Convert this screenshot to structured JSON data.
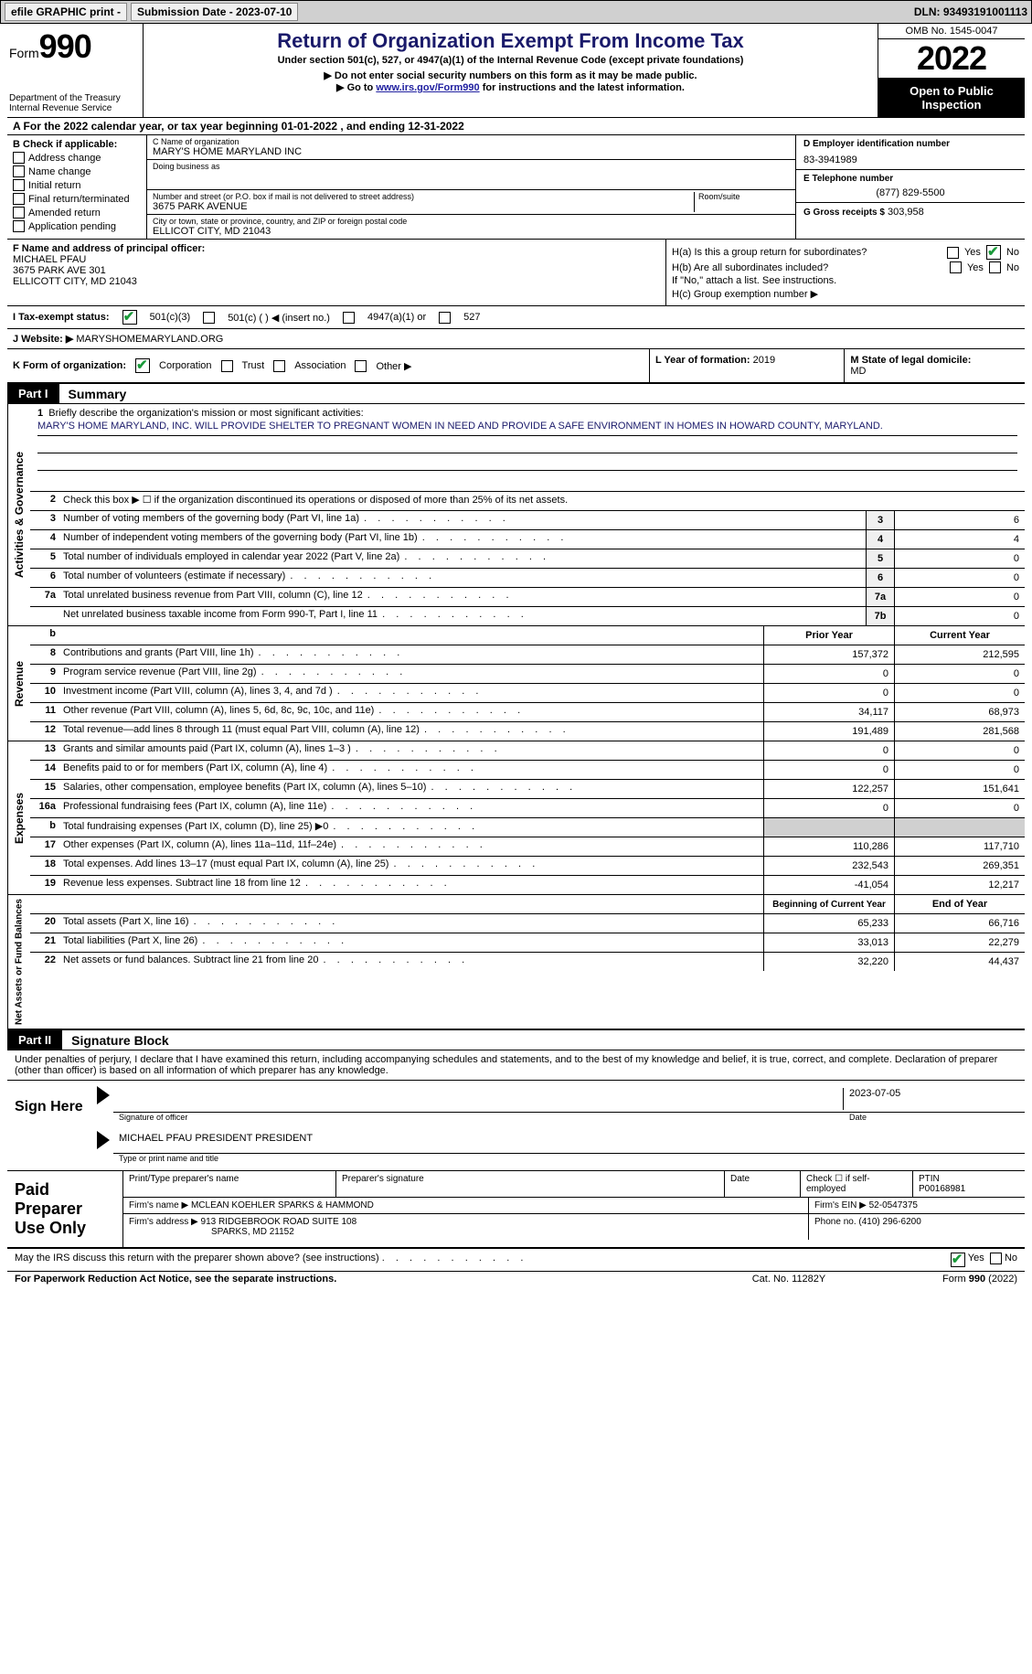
{
  "topbar": {
    "efile": "efile GRAPHIC print -",
    "submission": "Submission Date - 2023-07-10",
    "dln": "DLN: 93493191001113"
  },
  "header": {
    "form_word": "Form",
    "form_num": "990",
    "dept": "Department of the Treasury\nInternal Revenue Service",
    "title": "Return of Organization Exempt From Income Tax",
    "subtitle": "Under section 501(c), 527, or 4947(a)(1) of the Internal Revenue Code (except private foundations)",
    "note1": "▶ Do not enter social security numbers on this form as it may be made public.",
    "note2_pre": "▶ Go to ",
    "note2_link": "www.irs.gov/Form990",
    "note2_post": " for instructions and the latest information.",
    "omb": "OMB No. 1545-0047",
    "year": "2022",
    "open": "Open to Public Inspection"
  },
  "line_a": "A  For the 2022 calendar year, or tax year beginning 01-01-2022    , and ending 12-31-2022",
  "col_b": {
    "title": "B Check if applicable:",
    "opts": [
      "Address change",
      "Name change",
      "Initial return",
      "Final return/terminated",
      "Amended return",
      "Application pending"
    ]
  },
  "col_c": {
    "name_label": "C Name of organization",
    "name": "MARY'S HOME MARYLAND INC",
    "dba_label": "Doing business as",
    "dba": "",
    "addr_label": "Number and street (or P.O. box if mail is not delivered to street address)",
    "room_label": "Room/suite",
    "addr": "3675 PARK AVENUE",
    "city_label": "City or town, state or province, country, and ZIP or foreign postal code",
    "city": "ELLICOT CITY, MD  21043"
  },
  "col_d": {
    "ein_label": "D Employer identification number",
    "ein": "83-3941989",
    "phone_label": "E Telephone number",
    "phone": "(877) 829-5500",
    "gross_label": "G Gross receipts $",
    "gross": "303,958"
  },
  "col_f": {
    "label": "F Name and address of principal officer:",
    "name": "MICHAEL PFAU",
    "addr1": "3675 PARK AVE 301",
    "addr2": "ELLICOTT CITY, MD  21043"
  },
  "col_h": {
    "ha": "H(a)  Is this a group return for subordinates?",
    "hb": "H(b)  Are all subordinates included?",
    "hb_note": "If \"No,\" attach a list. See instructions.",
    "hc": "H(c)  Group exemption number ▶",
    "yes": "Yes",
    "no": "No"
  },
  "row_i": {
    "label": "I    Tax-exempt status:",
    "opt1": "501(c)(3)",
    "opt2": "501(c) (   ) ◀ (insert no.)",
    "opt3": "4947(a)(1) or",
    "opt4": "527"
  },
  "row_j": {
    "label": "J   Website: ▶",
    "val": "MARYSHOMEMARYLAND.ORG"
  },
  "row_k": {
    "label": "K Form of organization:",
    "opts": [
      "Corporation",
      "Trust",
      "Association",
      "Other ▶"
    ],
    "l_label": "L Year of formation:",
    "l_val": "2019",
    "m_label": "M State of legal domicile:",
    "m_val": "MD"
  },
  "parts": {
    "p1_tab": "Part I",
    "p1_title": "Summary",
    "p2_tab": "Part II",
    "p2_title": "Signature Block"
  },
  "vert": {
    "activities": "Activities & Governance",
    "revenue": "Revenue",
    "expenses": "Expenses",
    "netassets": "Net Assets or Fund Balances"
  },
  "summary": {
    "line1_label": "Briefly describe the organization's mission or most significant activities:",
    "line1_text": "MARY'S HOME MARYLAND, INC. WILL PROVIDE SHELTER TO PREGNANT WOMEN IN NEED AND PROVIDE A SAFE ENVIRONMENT IN HOMES IN HOWARD COUNTY, MARYLAND.",
    "line2": "Check this box ▶ ☐  if the organization discontinued its operations or disposed of more than 25% of its net assets.",
    "rows_gov": [
      {
        "n": "3",
        "t": "Number of voting members of the governing body (Part VI, line 1a)",
        "box": "3",
        "v": "6"
      },
      {
        "n": "4",
        "t": "Number of independent voting members of the governing body (Part VI, line 1b)",
        "box": "4",
        "v": "4"
      },
      {
        "n": "5",
        "t": "Total number of individuals employed in calendar year 2022 (Part V, line 2a)",
        "box": "5",
        "v": "0"
      },
      {
        "n": "6",
        "t": "Total number of volunteers (estimate if necessary)",
        "box": "6",
        "v": "0"
      },
      {
        "n": "7a",
        "t": "Total unrelated business revenue from Part VIII, column (C), line 12",
        "box": "7a",
        "v": "0"
      },
      {
        "n": "",
        "t": "Net unrelated business taxable income from Form 990-T, Part I, line 11",
        "box": "7b",
        "v": "0"
      }
    ],
    "hdr_prior": "Prior Year",
    "hdr_current": "Current Year",
    "rows_rev": [
      {
        "n": "8",
        "t": "Contributions and grants (Part VIII, line 1h)",
        "p": "157,372",
        "c": "212,595"
      },
      {
        "n": "9",
        "t": "Program service revenue (Part VIII, line 2g)",
        "p": "0",
        "c": "0"
      },
      {
        "n": "10",
        "t": "Investment income (Part VIII, column (A), lines 3, 4, and 7d )",
        "p": "0",
        "c": "0"
      },
      {
        "n": "11",
        "t": "Other revenue (Part VIII, column (A), lines 5, 6d, 8c, 9c, 10c, and 11e)",
        "p": "34,117",
        "c": "68,973"
      },
      {
        "n": "12",
        "t": "Total revenue—add lines 8 through 11 (must equal Part VIII, column (A), line 12)",
        "p": "191,489",
        "c": "281,568"
      }
    ],
    "rows_exp": [
      {
        "n": "13",
        "t": "Grants and similar amounts paid (Part IX, column (A), lines 1–3 )",
        "p": "0",
        "c": "0"
      },
      {
        "n": "14",
        "t": "Benefits paid to or for members (Part IX, column (A), line 4)",
        "p": "0",
        "c": "0"
      },
      {
        "n": "15",
        "t": "Salaries, other compensation, employee benefits (Part IX, column (A), lines 5–10)",
        "p": "122,257",
        "c": "151,641"
      },
      {
        "n": "16a",
        "t": "Professional fundraising fees (Part IX, column (A), line 11e)",
        "p": "0",
        "c": "0"
      },
      {
        "n": "b",
        "t": "Total fundraising expenses (Part IX, column (D), line 25) ▶0",
        "p": "SHADE",
        "c": "SHADE"
      },
      {
        "n": "17",
        "t": "Other expenses (Part IX, column (A), lines 11a–11d, 11f–24e)",
        "p": "110,286",
        "c": "117,710"
      },
      {
        "n": "18",
        "t": "Total expenses. Add lines 13–17 (must equal Part IX, column (A), line 25)",
        "p": "232,543",
        "c": "269,351"
      },
      {
        "n": "19",
        "t": "Revenue less expenses. Subtract line 18 from line 12",
        "p": "-41,054",
        "c": "12,217"
      }
    ],
    "hdr_begin": "Beginning of Current Year",
    "hdr_end": "End of Year",
    "rows_net": [
      {
        "n": "20",
        "t": "Total assets (Part X, line 16)",
        "p": "65,233",
        "c": "66,716"
      },
      {
        "n": "21",
        "t": "Total liabilities (Part X, line 26)",
        "p": "33,013",
        "c": "22,279"
      },
      {
        "n": "22",
        "t": "Net assets or fund balances. Subtract line 21 from line 20",
        "p": "32,220",
        "c": "44,437"
      }
    ]
  },
  "penalties": "Under penalties of perjury, I declare that I have examined this return, including accompanying schedules and statements, and to the best of my knowledge and belief, it is true, correct, and complete. Declaration of preparer (other than officer) is based on all information of which preparer has any knowledge.",
  "sign": {
    "label": "Sign Here",
    "sig_label": "Signature of officer",
    "date": "2023-07-05",
    "date_label": "Date",
    "name": "MICHAEL PFAU PRESIDENT PRESIDENT",
    "name_label": "Type or print name and title"
  },
  "prep": {
    "label": "Paid Preparer Use Only",
    "h1": "Print/Type preparer's name",
    "h2": "Preparer's signature",
    "h3": "Date",
    "h4_pre": "Check ☐ if self-employed",
    "h5": "PTIN",
    "ptin": "P00168981",
    "firm_label": "Firm's name     ▶",
    "firm": "MCLEAN KOEHLER SPARKS & HAMMOND",
    "ein_label": "Firm's EIN ▶",
    "ein": "52-0547375",
    "addr_label": "Firm's address ▶",
    "addr1": "913 RIDGEBROOK ROAD SUITE 108",
    "addr2": "SPARKS, MD  21152",
    "phone_label": "Phone no.",
    "phone": "(410) 296-6200"
  },
  "foot": {
    "discuss": "May the IRS discuss this return with the preparer shown above? (see instructions)",
    "yes": "Yes",
    "no": "No",
    "pra": "For Paperwork Reduction Act Notice, see the separate instructions.",
    "cat": "Cat. No. 11282Y",
    "form": "Form 990 (2022)"
  },
  "colors": {
    "blue": "#1a1a6a",
    "green_check": "#1a9a3a",
    "gray_bg": "#d0d0d0",
    "black": "#000000"
  }
}
